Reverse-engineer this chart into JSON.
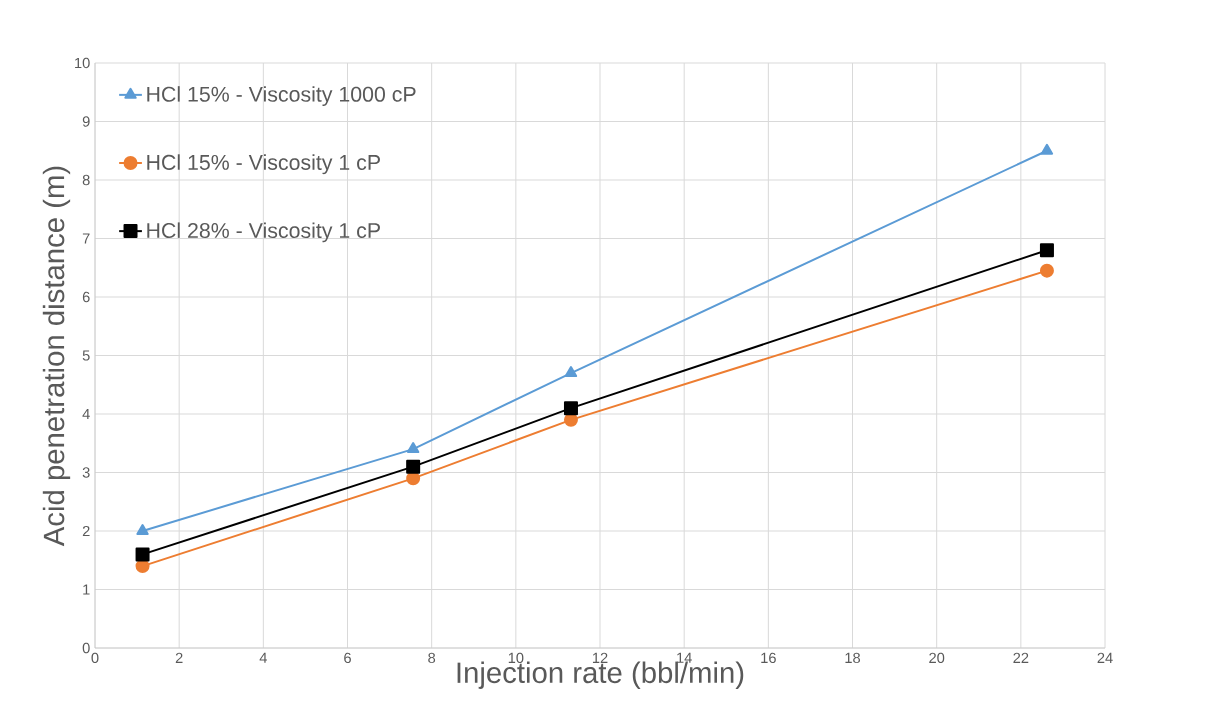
{
  "chart_data": {
    "type": "line",
    "xlabel": "Injection rate (bbl/min)",
    "ylabel": "Acid penetration distance (m)",
    "x": [
      1.13,
      7.56,
      11.31,
      22.62
    ],
    "series": [
      {
        "name": "HCl 15% - Viscosity 1000 cP",
        "color": "#5b9bd5",
        "marker": "triangle",
        "values": [
          2.0,
          3.4,
          4.7,
          8.5
        ]
      },
      {
        "name": "HCl 15% - Viscosity 1 cP",
        "color": "#ed7d31",
        "marker": "circle",
        "values": [
          1.4,
          2.9,
          3.9,
          6.45
        ]
      },
      {
        "name": "HCl 28% - Viscosity 1 cP",
        "color": "#000000",
        "marker": "square",
        "values": [
          1.6,
          3.1,
          4.1,
          6.8
        ]
      }
    ],
    "xlim": [
      0,
      24
    ],
    "xticks": [
      0,
      2,
      4,
      6,
      8,
      10,
      12,
      14,
      16,
      18,
      20,
      22,
      24
    ],
    "ylim": [
      0,
      10
    ],
    "yticks": [
      0,
      1,
      2,
      3,
      4,
      5,
      6,
      7,
      8,
      9,
      10
    ],
    "grid": true,
    "legend": "top left",
    "line_style": "solid"
  }
}
